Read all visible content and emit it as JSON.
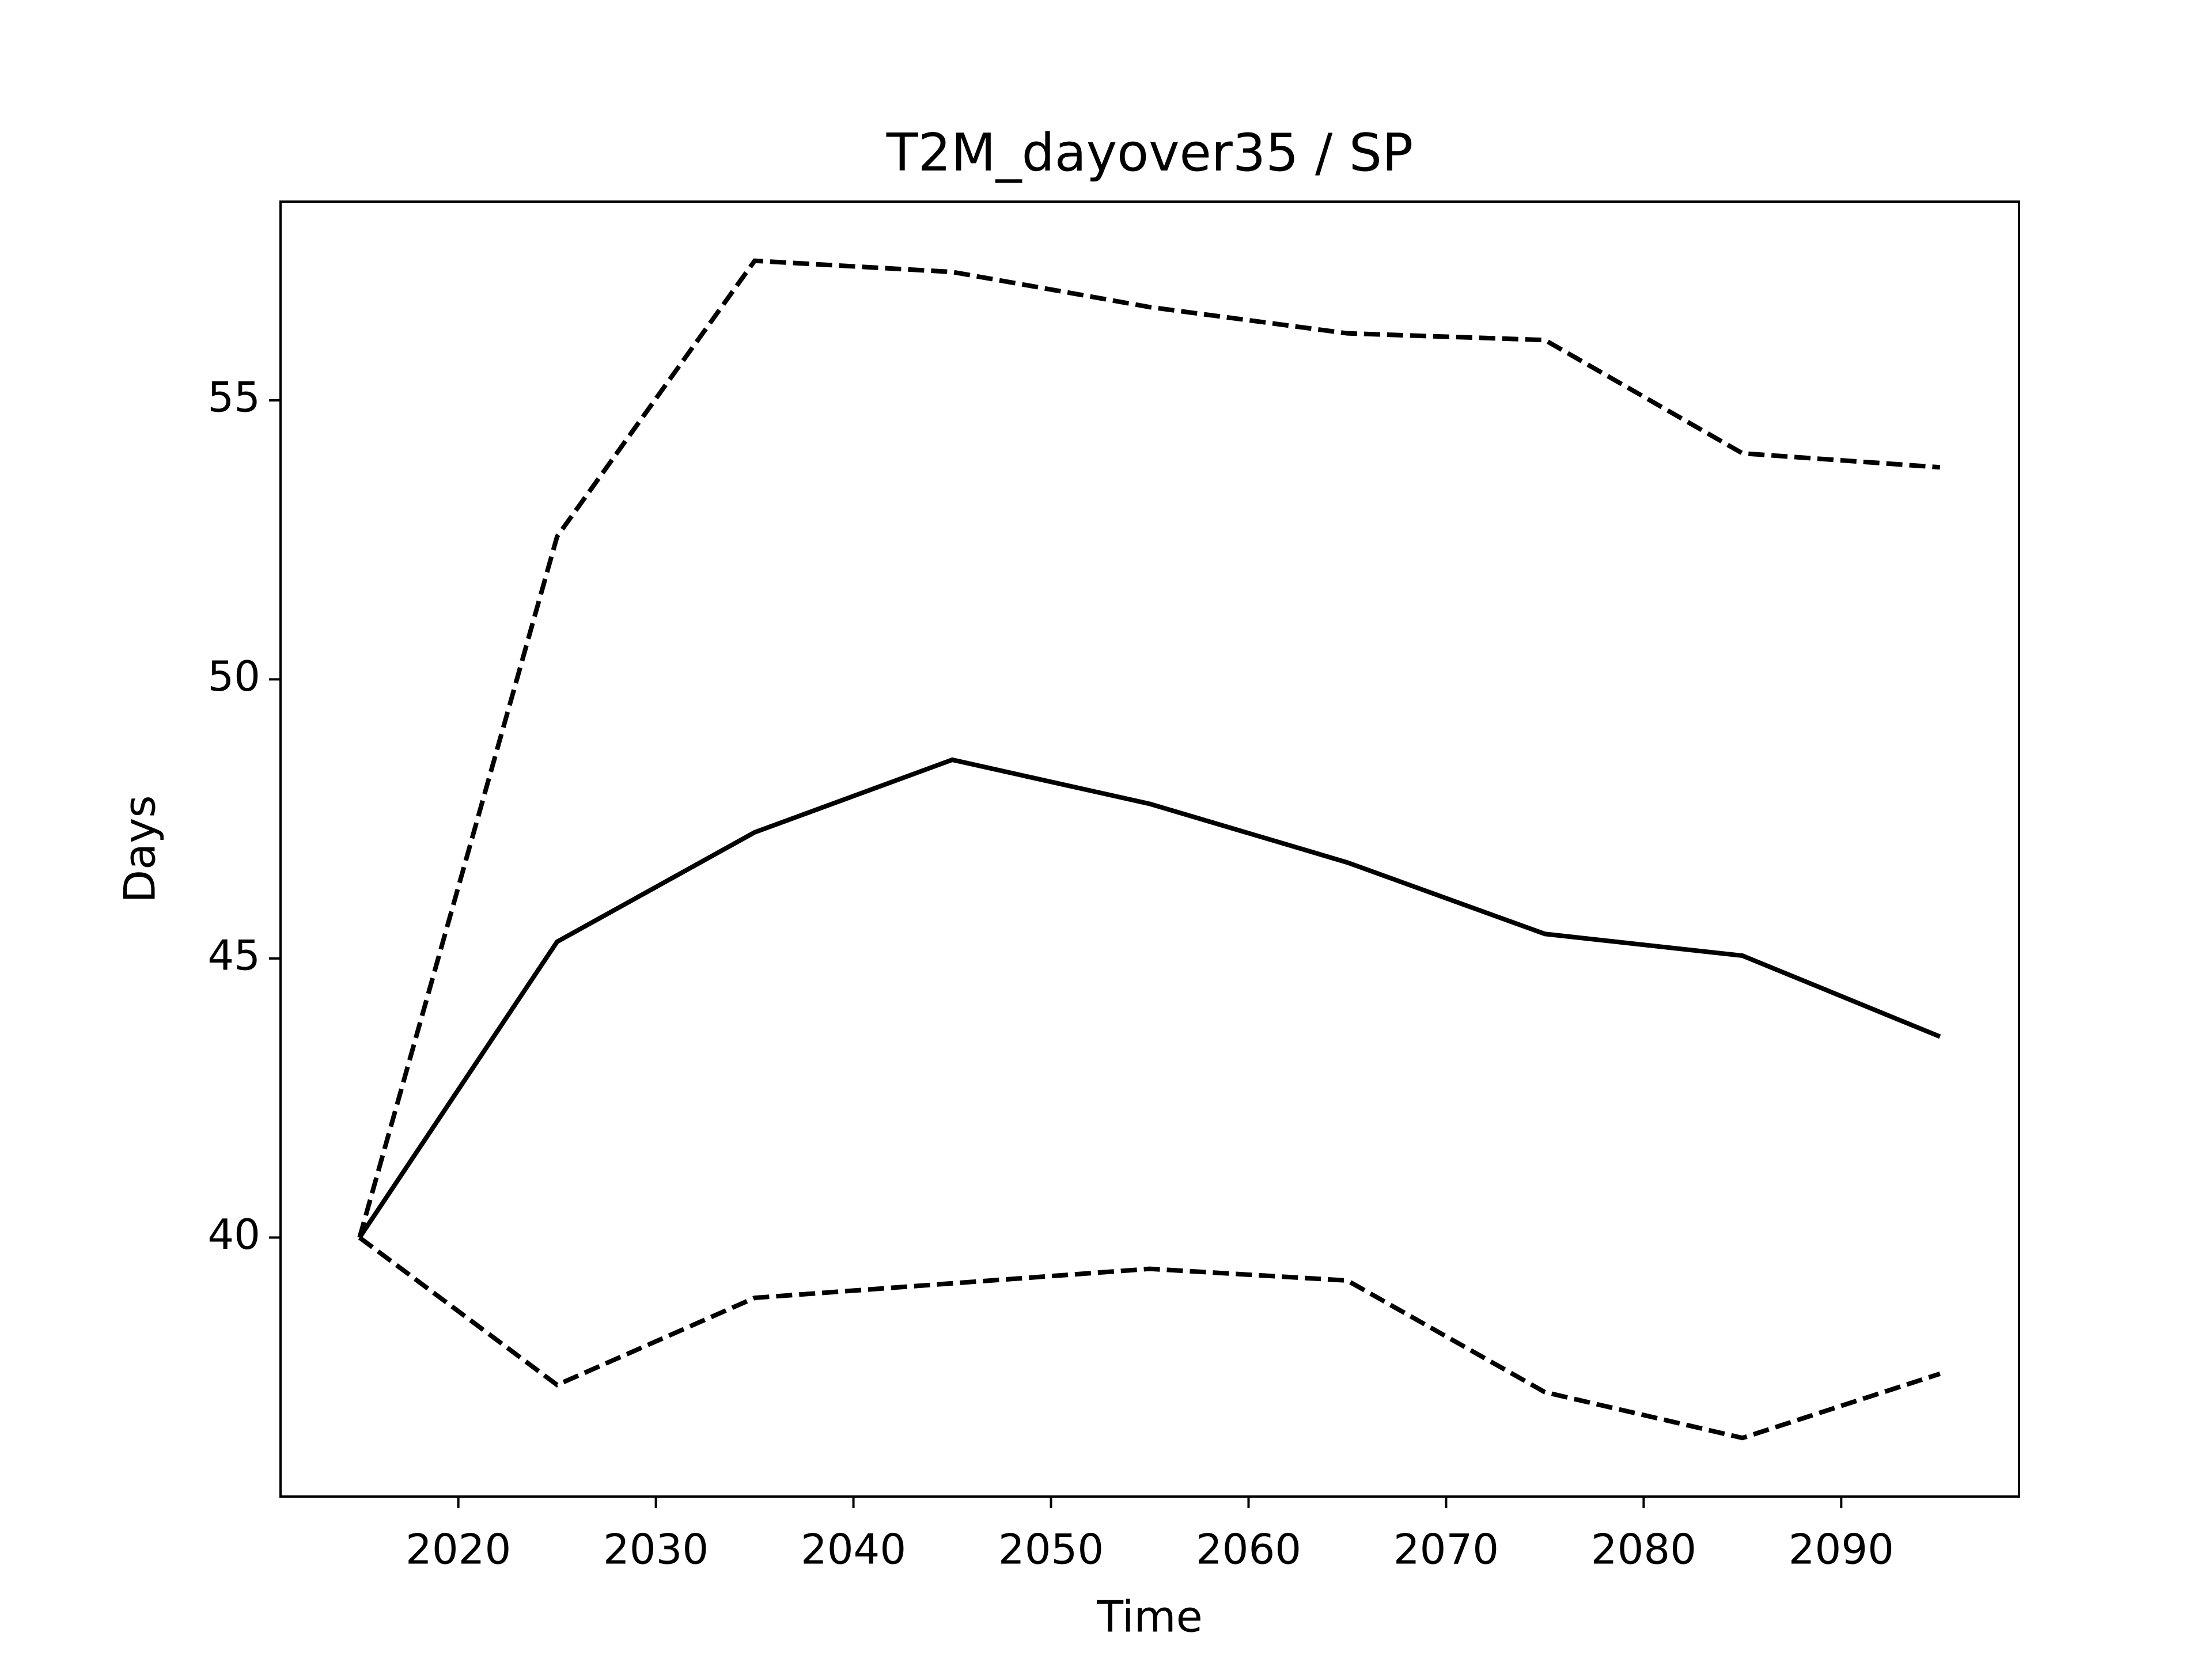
{
  "chart_data": {
    "type": "line",
    "title": "T2M_dayover35 / SP",
    "x_label": "Time",
    "y_label": "Days",
    "x": [
      2015,
      2025,
      2035,
      2045,
      2055,
      2065,
      2075,
      2085,
      2095
    ],
    "series": [
      {
        "color": "#000000",
        "linestyle": "solid",
        "values": [
          40.0,
          45.3,
          47.26,
          48.56,
          47.77,
          46.72,
          45.44,
          45.05,
          43.6
        ]
      },
      {
        "color": "#000000",
        "linestyle": "dashed",
        "values": [
          40.0,
          52.56,
          57.5,
          57.3,
          56.67,
          56.2,
          56.08,
          54.05,
          53.8
        ]
      },
      {
        "color": "#000000",
        "linestyle": "dashed",
        "values": [
          40.0,
          37.36,
          38.92,
          39.18,
          39.44,
          39.23,
          37.23,
          36.41,
          37.56
        ]
      }
    ],
    "xlim": [
      2011,
      2099
    ],
    "xticks": [
      2020,
      2030,
      2040,
      2050,
      2060,
      2070,
      2080,
      2090
    ],
    "ylim": [
      35.36,
      58.56
    ],
    "yticks": [
      40,
      45,
      50,
      55
    ],
    "grid": false
  }
}
